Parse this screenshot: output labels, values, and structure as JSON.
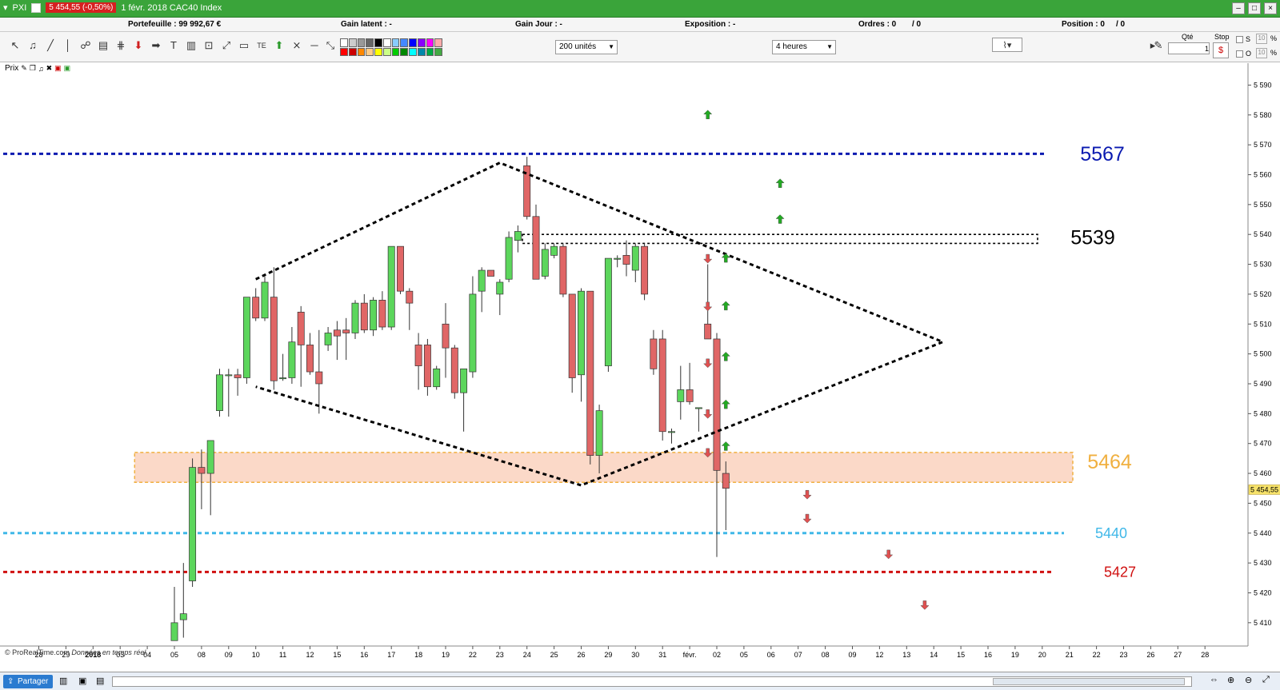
{
  "window": {
    "app_name": "PXI",
    "price_badge": "5 454,55 (-0,50%)",
    "title": "1 févr. 2018 CAC40 Index"
  },
  "infobar": {
    "portefeuille": "Portefeuille : 99 992,67 €",
    "gain_latent": "Gain latent : -",
    "gain_jour": "Gain Jour : -",
    "exposition": "Exposition : -",
    "ordres": "Ordres : 0",
    "ordres2": "/ 0",
    "position": "Position : 0",
    "position2": "/ 0"
  },
  "toolbar": {
    "units_select": "200 unités",
    "period_select": "4 heures",
    "qty_label": "Qté",
    "qty_value": "1",
    "stop_label": "Stop",
    "s_label": "S",
    "o_label": "O",
    "pct1": "10",
    "pct2": "10",
    "pct_sign": "%",
    "icons": [
      "cursor-icon",
      "bell-icon",
      "line-icon",
      "vertical-line-icon",
      "fib-icon",
      "channel-icon",
      "parallel-icon",
      "sell-arrow-icon",
      "arrow-icon",
      "text-icon",
      "trash-icon",
      "textbox-icon",
      "ray-icon",
      "rectangle-icon",
      "fib-text-icon",
      "buy-arrow-icon",
      "cross-line-icon",
      "horizontal-line-icon",
      "extended-line-icon"
    ]
  },
  "chart_panel": {
    "label": "Prix",
    "watermark": "© ProRealTime.com",
    "watermark_italic": "Données en temps réel"
  },
  "bottombar": {
    "share": "Partager"
  },
  "colors": {
    "bull": "#5cd65c",
    "bear": "#e06666",
    "level_5567": "#0a1ab0",
    "level_5539": "#000000",
    "level_5464": "#f0b040",
    "level_5440": "#40b8e8",
    "level_5427": "#d01010",
    "zone_fill": "#fbd9c8"
  },
  "chart_data": {
    "type": "candlestick",
    "title": "CAC40 Index",
    "timeframe": "4 heures",
    "ylim": [
      5403,
      5596
    ],
    "y_ticks": [
      5410,
      5420,
      5430,
      5440,
      5450,
      5460,
      5470,
      5480,
      5490,
      5500,
      5510,
      5520,
      5530,
      5540,
      5550,
      5560,
      5570,
      5580,
      5590
    ],
    "y_tick_labels": [
      "5 410",
      "5 420",
      "5 430",
      "5 440",
      "5 450",
      "5 460",
      "5 470",
      "5 480",
      "5 490",
      "5 500",
      "5 510",
      "5 520",
      "5 530",
      "5 540",
      "5 550",
      "5 560",
      "5 570",
      "5 580",
      "5 590"
    ],
    "last_price": 5454.55,
    "last_price_label": "5 454,55",
    "x_ticks": [
      {
        "label": "28",
        "i": -15
      },
      {
        "label": "29",
        "i": -12
      },
      {
        "label": "2018",
        "i": -9
      },
      {
        "label": "03",
        "i": -6
      },
      {
        "label": "04",
        "i": -3
      },
      {
        "label": "05",
        "i": 0
      },
      {
        "label": "08",
        "i": 3
      },
      {
        "label": "09",
        "i": 6
      },
      {
        "label": "10",
        "i": 9
      },
      {
        "label": "11",
        "i": 12
      },
      {
        "label": "12",
        "i": 15
      },
      {
        "label": "15",
        "i": 18
      },
      {
        "label": "16",
        "i": 21
      },
      {
        "label": "17",
        "i": 24
      },
      {
        "label": "18",
        "i": 27
      },
      {
        "label": "19",
        "i": 30
      },
      {
        "label": "22",
        "i": 33
      },
      {
        "label": "23",
        "i": 36
      },
      {
        "label": "24",
        "i": 39
      },
      {
        "label": "25",
        "i": 42
      },
      {
        "label": "26",
        "i": 45
      },
      {
        "label": "29",
        "i": 48
      },
      {
        "label": "30",
        "i": 51
      },
      {
        "label": "31",
        "i": 54
      },
      {
        "label": "févr.",
        "i": 57
      },
      {
        "label": "02",
        "i": 60
      },
      {
        "label": "05",
        "i": 63
      },
      {
        "label": "06",
        "i": 66
      },
      {
        "label": "07",
        "i": 69
      },
      {
        "label": "08",
        "i": 72
      },
      {
        "label": "09",
        "i": 75
      },
      {
        "label": "12",
        "i": 78
      },
      {
        "label": "13",
        "i": 81
      },
      {
        "label": "14",
        "i": 84
      },
      {
        "label": "15",
        "i": 87
      },
      {
        "label": "16",
        "i": 90
      },
      {
        "label": "19",
        "i": 93
      },
      {
        "label": "20",
        "i": 96
      },
      {
        "label": "21",
        "i": 99
      },
      {
        "label": "22",
        "i": 102
      },
      {
        "label": "23",
        "i": 105
      },
      {
        "label": "26",
        "i": 108
      },
      {
        "label": "27",
        "i": 111
      },
      {
        "label": "28",
        "i": 114
      }
    ],
    "candles": [
      {
        "o": 5404,
        "h": 5422,
        "l": 5404,
        "c": 5410
      },
      {
        "o": 5411,
        "h": 5430,
        "l": 5405,
        "c": 5413
      },
      {
        "o": 5424,
        "h": 5465,
        "l": 5422,
        "c": 5462
      },
      {
        "o": 5462,
        "h": 5468,
        "l": 5448,
        "c": 5460
      },
      {
        "o": 5460,
        "h": 5471,
        "l": 5446,
        "c": 5471
      },
      {
        "o": 5481,
        "h": 5495,
        "l": 5479,
        "c": 5493
      },
      {
        "o": 5493,
        "h": 5495,
        "l": 5479,
        "c": 5493
      },
      {
        "o": 5493,
        "h": 5495,
        "l": 5486,
        "c": 5492
      },
      {
        "o": 5492,
        "h": 5519,
        "l": 5490,
        "c": 5519
      },
      {
        "o": 5519,
        "h": 5522,
        "l": 5511,
        "c": 5512
      },
      {
        "o": 5512,
        "h": 5526,
        "l": 5511,
        "c": 5524
      },
      {
        "o": 5519,
        "h": 5529,
        "l": 5488,
        "c": 5491
      },
      {
        "o": 5492,
        "h": 5500,
        "l": 5491,
        "c": 5492
      },
      {
        "o": 5492,
        "h": 5509,
        "l": 5490,
        "c": 5504
      },
      {
        "o": 5514,
        "h": 5516,
        "l": 5489,
        "c": 5503
      },
      {
        "o": 5503,
        "h": 5507,
        "l": 5493,
        "c": 5494
      },
      {
        "o": 5494,
        "h": 5508,
        "l": 5480,
        "c": 5490
      },
      {
        "o": 5503,
        "h": 5509,
        "l": 5501,
        "c": 5507
      },
      {
        "o": 5508,
        "h": 5511,
        "l": 5498,
        "c": 5506
      },
      {
        "o": 5508,
        "h": 5512,
        "l": 5498,
        "c": 5507
      },
      {
        "o": 5507,
        "h": 5518,
        "l": 5505,
        "c": 5517
      },
      {
        "o": 5517,
        "h": 5520,
        "l": 5507,
        "c": 5508
      },
      {
        "o": 5508,
        "h": 5519,
        "l": 5506,
        "c": 5518
      },
      {
        "o": 5518,
        "h": 5521,
        "l": 5508,
        "c": 5509
      },
      {
        "o": 5509,
        "h": 5536,
        "l": 5508,
        "c": 5536
      },
      {
        "o": 5536,
        "h": 5536,
        "l": 5520,
        "c": 5521
      },
      {
        "o": 5521,
        "h": 5522,
        "l": 5508,
        "c": 5517
      },
      {
        "o": 5503,
        "h": 5507,
        "l": 5488,
        "c": 5496
      },
      {
        "o": 5503,
        "h": 5505,
        "l": 5486,
        "c": 5489
      },
      {
        "o": 5489,
        "h": 5496,
        "l": 5488,
        "c": 5495
      },
      {
        "o": 5510,
        "h": 5517,
        "l": 5492,
        "c": 5502
      },
      {
        "o": 5502,
        "h": 5503,
        "l": 5485,
        "c": 5487
      },
      {
        "o": 5487,
        "h": 5495,
        "l": 5474,
        "c": 5495
      },
      {
        "o": 5494,
        "h": 5526,
        "l": 5492,
        "c": 5520
      },
      {
        "o": 5521,
        "h": 5529,
        "l": 5514,
        "c": 5528
      },
      {
        "o": 5528,
        "h": 5528,
        "l": 5526,
        "c": 5526
      },
      {
        "o": 5520,
        "h": 5525,
        "l": 5513,
        "c": 5524
      },
      {
        "o": 5525,
        "h": 5541,
        "l": 5524,
        "c": 5539
      },
      {
        "o": 5538,
        "h": 5543,
        "l": 5534,
        "c": 5541
      },
      {
        "o": 5563,
        "h": 5566,
        "l": 5545,
        "c": 5546
      },
      {
        "o": 5546,
        "h": 5550,
        "l": 5526,
        "c": 5525
      },
      {
        "o": 5526,
        "h": 5537,
        "l": 5525,
        "c": 5535
      },
      {
        "o": 5533,
        "h": 5537,
        "l": 5532,
        "c": 5536
      },
      {
        "o": 5536,
        "h": 5537,
        "l": 5519,
        "c": 5520
      },
      {
        "o": 5520,
        "h": 5520,
        "l": 5487,
        "c": 5492
      },
      {
        "o": 5493,
        "h": 5522,
        "l": 5484,
        "c": 5521
      },
      {
        "o": 5521,
        "h": 5521,
        "l": 5463,
        "c": 5466
      },
      {
        "o": 5466,
        "h": 5483,
        "l": 5460,
        "c": 5481
      },
      {
        "o": 5496,
        "h": 5532,
        "l": 5494,
        "c": 5532
      },
      {
        "o": 5532,
        "h": 5533,
        "l": 5529,
        "c": 5532
      },
      {
        "o": 5533,
        "h": 5538,
        "l": 5526,
        "c": 5530
      },
      {
        "o": 5528,
        "h": 5537,
        "l": 5524,
        "c": 5536
      },
      {
        "o": 5536,
        "h": 5537,
        "l": 5518,
        "c": 5520
      },
      {
        "o": 5505,
        "h": 5508,
        "l": 5493,
        "c": 5495
      },
      {
        "o": 5505,
        "h": 5508,
        "l": 5471,
        "c": 5474
      },
      {
        "o": 5474,
        "h": 5475,
        "l": 5470,
        "c": 5474
      },
      {
        "o": 5484,
        "h": 5496,
        "l": 5478,
        "c": 5488
      },
      {
        "o": 5488,
        "h": 5497,
        "l": 5483,
        "c": 5484
      },
      {
        "o": 5482,
        "h": 5482,
        "l": 5474,
        "c": 5482
      },
      {
        "o": 5510,
        "h": 5530,
        "l": 5505,
        "c": 5505
      },
      {
        "o": 5505,
        "h": 5507,
        "l": 5432,
        "c": 5461
      },
      {
        "o": 5460,
        "h": 5464,
        "l": 5441,
        "c": 5455
      }
    ],
    "levels": [
      {
        "value": 5567,
        "label": "5567",
        "style": "dotted",
        "color": "#0a1ab0"
      },
      {
        "value": 5539,
        "label": "5539",
        "style": "dotted-band",
        "color": "#000000"
      },
      {
        "value": 5464,
        "label": "5464",
        "style": "zone",
        "color": "#f0b040",
        "zone": [
          5457,
          5467
        ]
      },
      {
        "value": 5440,
        "label": "5440",
        "style": "dotted",
        "color": "#40b8e8"
      },
      {
        "value": 5427,
        "label": "5427",
        "style": "dotted",
        "color": "#d01010"
      }
    ],
    "pattern": {
      "type": "diamond",
      "points": [
        [
          9,
          5525
        ],
        [
          36,
          5564
        ],
        [
          85,
          5504
        ],
        [
          45,
          5456
        ],
        [
          9,
          5489
        ]
      ]
    },
    "signal_arrows": [
      {
        "i": 59,
        "v": 5580,
        "dir": "up"
      },
      {
        "i": 67,
        "v": 5557,
        "dir": "up"
      },
      {
        "i": 67,
        "v": 5545,
        "dir": "up"
      },
      {
        "i": 61,
        "v": 5532,
        "dir": "up"
      },
      {
        "i": 61,
        "v": 5516,
        "dir": "up"
      },
      {
        "i": 61,
        "v": 5499,
        "dir": "up"
      },
      {
        "i": 61,
        "v": 5483,
        "dir": "up"
      },
      {
        "i": 61,
        "v": 5469,
        "dir": "up"
      },
      {
        "i": 59,
        "v": 5532,
        "dir": "down"
      },
      {
        "i": 59,
        "v": 5516,
        "dir": "down"
      },
      {
        "i": 59,
        "v": 5497,
        "dir": "down"
      },
      {
        "i": 59,
        "v": 5480,
        "dir": "down"
      },
      {
        "i": 59,
        "v": 5467,
        "dir": "down"
      },
      {
        "i": 70,
        "v": 5453,
        "dir": "down"
      },
      {
        "i": 70,
        "v": 5445,
        "dir": "down"
      },
      {
        "i": 79,
        "v": 5433,
        "dir": "down"
      },
      {
        "i": 83,
        "v": 5416,
        "dir": "down"
      }
    ]
  }
}
